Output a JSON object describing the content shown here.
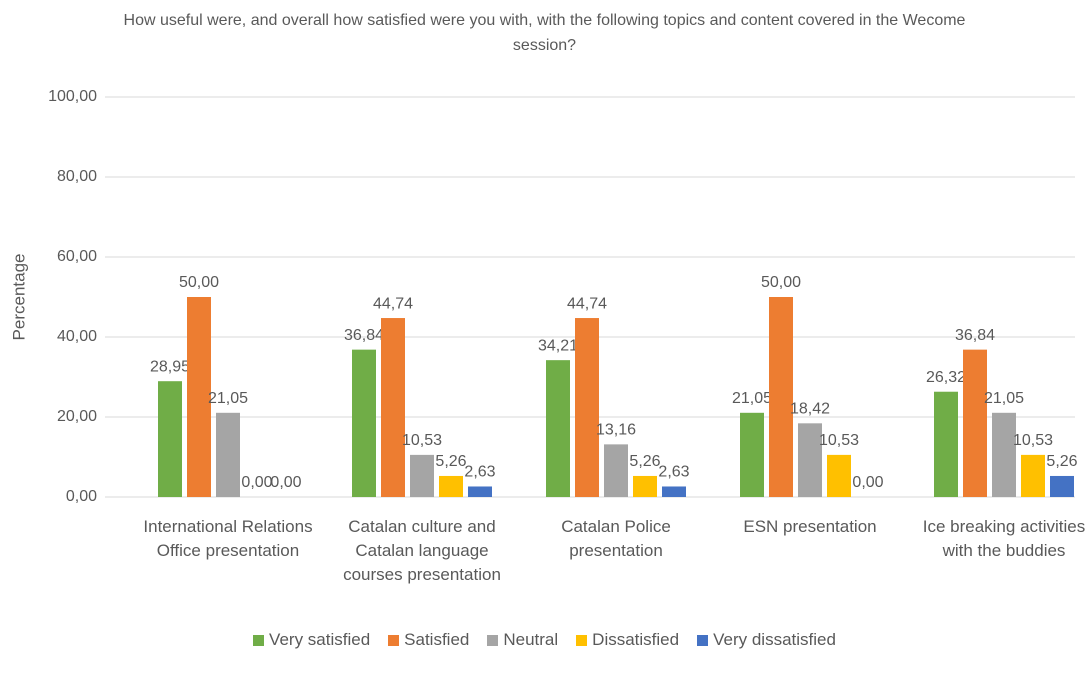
{
  "chart_data": {
    "type": "bar",
    "title": "How useful were, and overall how satisfied were you with, with the following topics and content covered in the Wecome session?",
    "y_label": "Percentage",
    "categories": [
      "International Relations Office presentation",
      "Catalan culture and Catalan language courses presentation",
      "Catalan Police presentation",
      "ESN presentation",
      "Ice breaking activities with the buddies"
    ],
    "series": [
      {
        "name": "Very satisfied",
        "color": "#70ad47",
        "values": [
          28.95,
          36.84,
          34.21,
          21.05,
          26.32
        ],
        "value_labels": [
          "28,95",
          "36,84",
          "34,21",
          "21,05",
          "26,32"
        ]
      },
      {
        "name": "Satisfied",
        "color": "#ed7d31",
        "values": [
          50,
          44.74,
          44.74,
          50,
          36.84
        ],
        "value_labels": [
          "50,00",
          "44,74",
          "44,74",
          "50,00",
          "36,84"
        ]
      },
      {
        "name": "Neutral",
        "color": "#a5a5a5",
        "values": [
          21.05,
          10.53,
          13.16,
          18.42,
          21.05
        ],
        "value_labels": [
          "21,05",
          "10,53",
          "13,16",
          "18,42",
          "21,05"
        ]
      },
      {
        "name": "Dissatisfied",
        "color": "#ffc000",
        "values": [
          0,
          5.26,
          5.26,
          10.53,
          10.53
        ],
        "value_labels": [
          "0,00",
          "5,26",
          "5,26",
          "10,53",
          "10,53"
        ]
      },
      {
        "name": "Very dissatisfied",
        "color": "#4472c4",
        "values": [
          0,
          2.63,
          2.63,
          0,
          5.26
        ],
        "value_labels": [
          "0,00",
          "2,63",
          "2,63",
          "0,00",
          "5,26"
        ]
      }
    ],
    "ylim": [
      0,
      100
    ],
    "yticks": [
      {
        "value": 0,
        "label": "0,00"
      },
      {
        "value": 20,
        "label": "20,00"
      },
      {
        "value": 40,
        "label": "40,00"
      },
      {
        "value": 60,
        "label": "60,00"
      },
      {
        "value": 80,
        "label": "80,00"
      },
      {
        "value": 100,
        "label": "100,00"
      }
    ],
    "grid": true,
    "legend": "bottom"
  }
}
